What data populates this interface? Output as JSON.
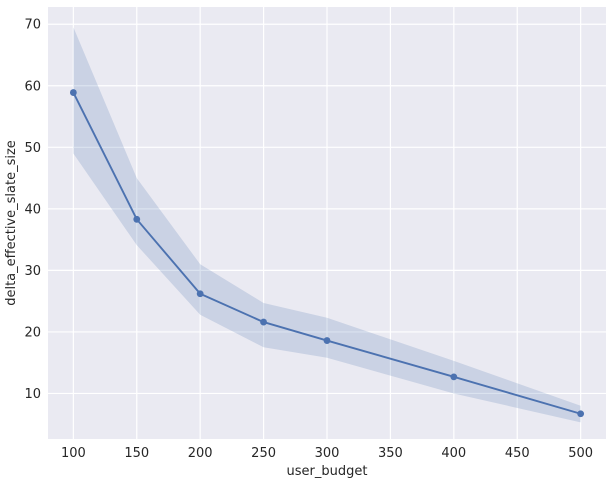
{
  "chart_data": {
    "type": "line",
    "title": "",
    "xlabel": "user_budget",
    "ylabel": "delta_effective_slate_size",
    "x": [
      100,
      150,
      200,
      250,
      300,
      400,
      500
    ],
    "series": [
      {
        "name": "delta_effective_slate_size",
        "values": [
          58.9,
          38.3,
          26.2,
          21.6,
          18.6,
          12.7,
          6.7
        ],
        "ci_lower": [
          49.0,
          34.1,
          22.8,
          17.5,
          15.8,
          10.0,
          5.3
        ],
        "ci_upper": [
          69.5,
          45.0,
          31.0,
          24.7,
          22.3,
          15.3,
          8.0
        ]
      }
    ],
    "x_ticks": [
      100,
      150,
      200,
      250,
      300,
      350,
      400,
      450,
      500
    ],
    "y_ticks": [
      10,
      20,
      30,
      40,
      50,
      60,
      70
    ],
    "xlim": [
      80,
      520
    ],
    "ylim": [
      2.6,
      72.8
    ],
    "grid": true,
    "legend": false,
    "style": {
      "figure_bg": "#ffffff",
      "axes_bg": "#eaeaf2",
      "grid_color": "#ffffff",
      "line_color": "#4c72b0",
      "marker_color": "#4c72b0",
      "band_color": "#4c72b0",
      "band_opacity": 0.2,
      "text_color": "#262626"
    }
  }
}
